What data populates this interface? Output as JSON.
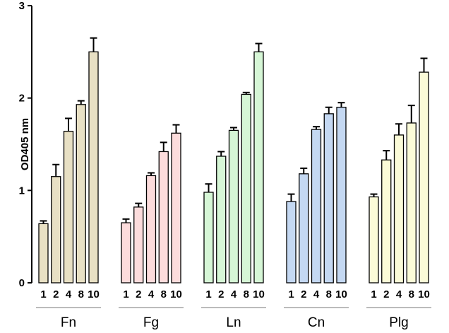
{
  "chart_data": {
    "type": "bar",
    "title": "",
    "xlabel": "",
    "ylabel": "OD405 nm",
    "ylim": [
      0,
      3
    ],
    "yticks": [
      "0",
      "1",
      "2",
      "3"
    ],
    "grid": false,
    "legend": "none",
    "categories": [
      "1",
      "2",
      "4",
      "8",
      "10"
    ],
    "groups": [
      {
        "name": "Fn",
        "color": "#e8e0c4",
        "values": [
          0.64,
          1.15,
          1.64,
          1.93,
          2.5
        ],
        "errors": [
          0.03,
          0.13,
          0.14,
          0.04,
          0.15
        ]
      },
      {
        "name": "Fg",
        "color": "#fcdcdc",
        "values": [
          0.65,
          0.82,
          1.16,
          1.42,
          1.62
        ],
        "errors": [
          0.04,
          0.04,
          0.03,
          0.1,
          0.09
        ]
      },
      {
        "name": "Ln",
        "color": "#d6f6d6",
        "values": [
          0.98,
          1.37,
          1.65,
          2.04,
          2.5
        ],
        "errors": [
          0.09,
          0.05,
          0.03,
          0.02,
          0.09
        ]
      },
      {
        "name": "Cn",
        "color": "#c4d8f2",
        "values": [
          0.88,
          1.18,
          1.66,
          1.83,
          1.9
        ],
        "errors": [
          0.08,
          0.06,
          0.03,
          0.07,
          0.05
        ]
      },
      {
        "name": "Plg",
        "color": "#fbfbd8",
        "values": [
          0.93,
          1.33,
          1.6,
          1.73,
          2.28
        ],
        "errors": [
          0.03,
          0.1,
          0.12,
          0.19,
          0.15
        ]
      }
    ]
  }
}
